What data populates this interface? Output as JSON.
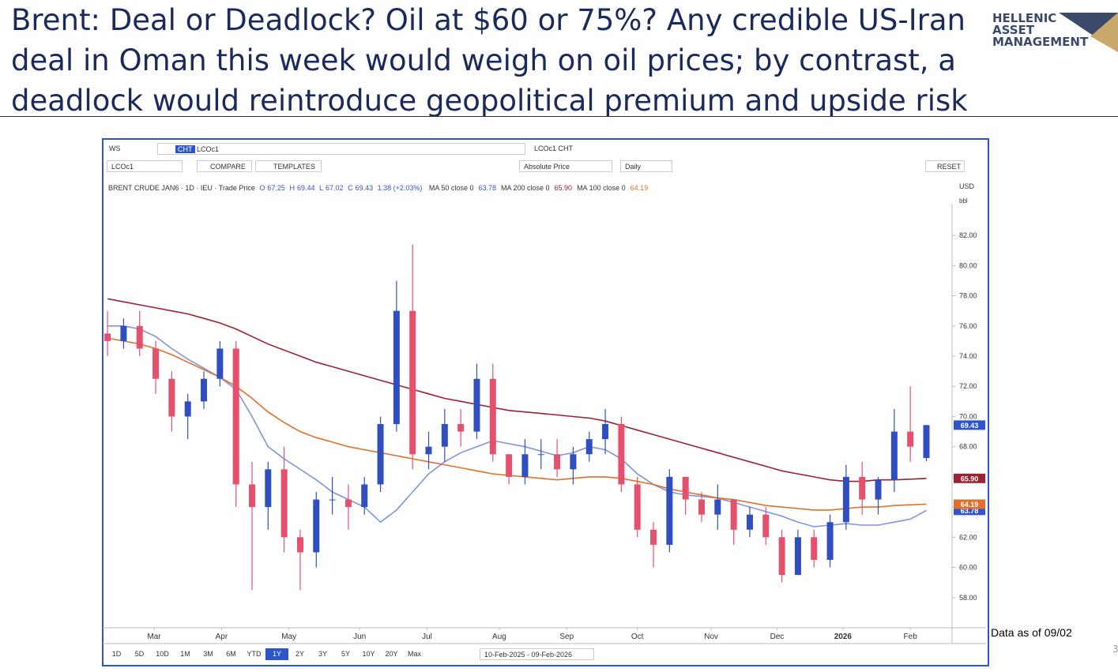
{
  "header": {
    "title": [
      "Brent: Deal or Deadlock? Oil at $60 or 75%? Any credible US-Iran",
      "deal in Oman this week would weigh on oil prices; by contrast, a",
      "deadlock would reintroduce geopolitical premium and upside risk"
    ],
    "logo": [
      "HELLENIC",
      "ASSET",
      "MANAGEMENT"
    ]
  },
  "toolbar": {
    "workspace": "WS",
    "cht": "CHT",
    "search": "LCOc1",
    "tab": "LCOc1 CHT",
    "ric": "LCOc1",
    "compare": "COMPARE",
    "templates": "TEMPLATES",
    "price_mode": "Absolute Price",
    "interval": "Daily",
    "reset": "RESET",
    "currency": "USD",
    "unit": "bbl",
    "ranges": [
      "1D",
      "5D",
      "10D",
      "1M",
      "3M",
      "6M",
      "YTD",
      "1Y",
      "2Y",
      "3Y",
      "5Y",
      "10Y",
      "20Y",
      "Max"
    ],
    "selected_range": 7,
    "date_range": "10-Feb-2025 - 09-Feb-2026"
  },
  "chart_data": {
    "type": "candlestick",
    "instrument": "BRENT CRUDE JAN6 · 1D · IEU · Trade Price",
    "ohlc_labels": [
      "O",
      "H",
      "L",
      "C"
    ],
    "change": "1.38 (+2.03%)",
    "categories": [
      null,
      null,
      null,
      null,
      null,
      null,
      null,
      null,
      null,
      null,
      null,
      null,
      null,
      null,
      null,
      null,
      null,
      null,
      null,
      null,
      null,
      null,
      null,
      null,
      null,
      null,
      null,
      null,
      null,
      null,
      null,
      null,
      null,
      null,
      null,
      null,
      null,
      null,
      null,
      null,
      null,
      null,
      null,
      null,
      null,
      null,
      null,
      null,
      null,
      null,
      null,
      null
    ],
    "open": [
      75.5,
      75,
      76,
      74.5,
      72.5,
      70,
      71,
      72.5,
      74.5,
      65.5,
      64,
      66.5,
      62,
      61,
      64.5,
      64.5,
      64,
      65.5,
      69.5,
      77,
      67.5,
      68,
      69.5,
      69,
      72.5,
      67.5,
      66,
      67.5,
      67.5,
      66.5,
      67.5,
      68.5,
      69.5,
      65.5,
      62.5,
      61.5,
      66,
      64.5,
      63.5,
      64.5,
      62.5,
      63.5,
      62,
      59.5,
      62,
      60.5,
      63,
      66,
      64.5,
      65.8,
      69,
      67.25
    ],
    "high": [
      77,
      76.5,
      77,
      75,
      73,
      71.5,
      73,
      75,
      75,
      67,
      67,
      68,
      62.5,
      65,
      66,
      65.5,
      66,
      70,
      79,
      81.4,
      69,
      70.5,
      70.5,
      73.5,
      73.5,
      67.5,
      68.5,
      68.5,
      68.5,
      68,
      69,
      70.5,
      70,
      66,
      63,
      66.5,
      66,
      65,
      65.5,
      64.5,
      64,
      64,
      62.5,
      62.5,
      62.5,
      63.5,
      66.8,
      67,
      66,
      70.5,
      72,
      69.44
    ],
    "low": [
      74,
      74.5,
      74,
      71.5,
      69,
      68.5,
      70.5,
      72,
      64,
      58.5,
      62.5,
      61,
      58.5,
      60,
      63.5,
      62.5,
      63.5,
      65,
      69,
      66.5,
      66.5,
      67,
      68,
      68.5,
      67,
      65.5,
      65.5,
      66.5,
      66,
      65.5,
      67,
      67.5,
      65,
      62,
      60,
      61,
      63.5,
      63,
      62.5,
      61.5,
      62,
      61.5,
      59,
      59.5,
      60,
      60,
      62.5,
      63.5,
      63.5,
      65,
      67,
      67.02
    ],
    "close": [
      75,
      76,
      74.5,
      72.5,
      70,
      71,
      72.5,
      74.5,
      65.5,
      64,
      66.5,
      62,
      61,
      64.5,
      64.5,
      64,
      65.5,
      69.5,
      77,
      67.5,
      68,
      69.5,
      69,
      72.5,
      67.5,
      66,
      67.5,
      67.5,
      66.5,
      67.5,
      68.5,
      69.5,
      65.5,
      62.5,
      61.5,
      66,
      64.5,
      63.5,
      64.5,
      62.5,
      63.5,
      62,
      59.5,
      62,
      60.5,
      63,
      66,
      64.5,
      65.8,
      69,
      68,
      69.43
    ],
    "up_color": "#2f4fc0",
    "down_color": "#e5506c",
    "mas": [
      {
        "name": "MA 50 close 0",
        "color": "#7f94e0",
        "label_color": "#3355cc",
        "price_tag": "63.78",
        "values": [
          76,
          76,
          75.8,
          75.3,
          74.5,
          73.8,
          73.2,
          72.6,
          71.8,
          70,
          68,
          67.2,
          66.5,
          65.8,
          65,
          64.5,
          64,
          63,
          63.8,
          65,
          66.2,
          67,
          67.6,
          68,
          68.4,
          68.2,
          68,
          67.7,
          67.4,
          67.6,
          68,
          67.8,
          67.2,
          66.2,
          65.5,
          65,
          64.8,
          64.7,
          64.6,
          64.3,
          64,
          63.7,
          63.4,
          63,
          62.7,
          62.8,
          62.9,
          62.8,
          62.8,
          63,
          63.2,
          63.78
        ]
      },
      {
        "name": "MA 200 close 0",
        "color": "#9b2230",
        "label_color": "#9b2230",
        "price_tag": "65.90",
        "values": [
          77.8,
          77.6,
          77.4,
          77.2,
          77,
          76.8,
          76.5,
          76.2,
          75.8,
          75.3,
          74.8,
          74.4,
          74,
          73.6,
          73.3,
          73,
          72.7,
          72.4,
          72.1,
          71.8,
          71.5,
          71.2,
          71,
          70.8,
          70.6,
          70.4,
          70.3,
          70.2,
          70.1,
          70,
          69.9,
          69.7,
          69.4,
          69.1,
          68.8,
          68.5,
          68.2,
          67.9,
          67.6,
          67.3,
          67,
          66.7,
          66.4,
          66.2,
          66,
          65.8,
          65.7,
          65.7,
          65.8,
          65.8,
          65.85,
          65.9
        ]
      },
      {
        "name": "MA 100 close 0",
        "color": "#e0702a",
        "label_color": "#e0702a",
        "price_tag": "64.19",
        "values": [
          75.2,
          75,
          74.8,
          74.5,
          74.1,
          73.6,
          73.1,
          72.6,
          72,
          71.2,
          70.3,
          69.6,
          69,
          68.6,
          68.3,
          68,
          67.8,
          67.6,
          67.4,
          67.2,
          67,
          66.8,
          66.6,
          66.4,
          66.2,
          66.1,
          66,
          65.9,
          65.8,
          65.9,
          66,
          66,
          65.9,
          65.7,
          65.5,
          65.2,
          65,
          64.8,
          64.6,
          64.5,
          64.3,
          64.1,
          64,
          63.9,
          63.8,
          63.8,
          63.9,
          64,
          64,
          64.1,
          64.15,
          64.19
        ]
      }
    ],
    "close_tag_color": "#2d55c8",
    "ylim": [
      56,
      84.1
    ],
    "yticks": [
      {
        "value": 58,
        "label": "58.00"
      },
      {
        "value": 60,
        "label": "60.00"
      },
      {
        "value": 62,
        "label": "62.00"
      },
      {
        "value": 64,
        "label": "64.00"
      },
      {
        "value": 66,
        "label": "66.00"
      },
      {
        "value": 68,
        "label": "68.00"
      },
      {
        "value": 70,
        "label": "70.00"
      },
      {
        "value": 72,
        "label": "72.00"
      },
      {
        "value": 74,
        "label": "74.00"
      },
      {
        "value": 76,
        "label": "76.00"
      },
      {
        "value": 78,
        "label": "78.00"
      },
      {
        "value": 80,
        "label": "80.00"
      },
      {
        "value": 82,
        "label": "82.00"
      }
    ],
    "xlim": [
      -0.3,
      52.6
    ],
    "xticks": [
      {
        "value": 2.9,
        "label": "Mar"
      },
      {
        "value": 7.1,
        "label": "Apr"
      },
      {
        "value": 11.3,
        "label": "May"
      },
      {
        "value": 15.7,
        "label": "Jun"
      },
      {
        "value": 19.9,
        "label": "Jul"
      },
      {
        "value": 24.4,
        "label": "Aug"
      },
      {
        "value": 28.6,
        "label": "Sep"
      },
      {
        "value": 33,
        "label": "Oct"
      },
      {
        "value": 37.6,
        "label": "Nov"
      },
      {
        "value": 41.7,
        "label": "Dec"
      },
      {
        "value": 45.8,
        "label": "2026"
      },
      {
        "value": 50,
        "label": "Feb"
      }
    ]
  },
  "note": "Data as of 09/02",
  "page_number": "3"
}
